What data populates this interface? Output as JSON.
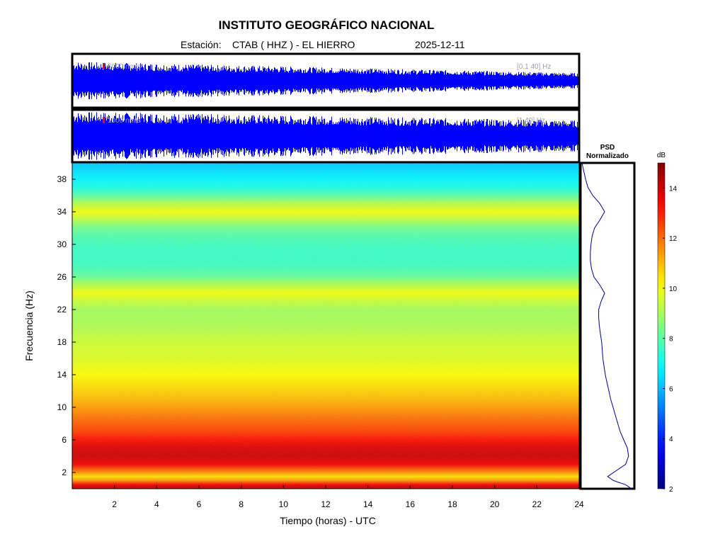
{
  "header": {
    "title": "INSTITUTO GEOGRÁFICO NACIONAL",
    "station_label": "Estación:",
    "station_value": "CTAB ( HHZ ) - EL HIERRO",
    "date": "2025-12-11"
  },
  "traces": [
    {
      "scale_label": "5000 nm/s",
      "filter_label": "[0.1 40] Hz",
      "color": "#0000ff"
    },
    {
      "scale_label": "1000 nm/s",
      "filter_label": "[1 40] Hz",
      "color": "#0000ff"
    }
  ],
  "psd_panel": {
    "title_line1": "PSD",
    "title_line2": "Normalizado",
    "line_color": "#00008b"
  },
  "colorbar": {
    "unit": "dB",
    "range": [
      2,
      15
    ],
    "ticks": [
      2,
      4,
      6,
      8,
      10,
      12,
      14
    ],
    "colormap": "jet"
  },
  "chart_data": {
    "type": "heatmap",
    "title": "INSTITUTO GEOGRÁFICO NACIONAL",
    "xlabel": "Tiempo (horas) - UTC",
    "ylabel": "Frecuencia  (Hz)",
    "xlim": [
      0,
      24
    ],
    "ylim": [
      0,
      40
    ],
    "xticks": [
      2,
      4,
      6,
      8,
      10,
      12,
      14,
      16,
      18,
      20,
      22,
      24
    ],
    "yticks": [
      2,
      6,
      10,
      14,
      18,
      22,
      26,
      30,
      34,
      38
    ],
    "color_unit": "dB",
    "color_range": [
      2,
      15
    ],
    "psd_profile": {
      "frequency": [
        0,
        0.5,
        1,
        1.5,
        2,
        3,
        4,
        5,
        6,
        7,
        8,
        9,
        10,
        11,
        12,
        13,
        14,
        15,
        16,
        17,
        18,
        19,
        20,
        21,
        22,
        23,
        24,
        25,
        26,
        27,
        28,
        29,
        30,
        31,
        32,
        33,
        34,
        35,
        36,
        37,
        38,
        39,
        40
      ],
      "level_db": [
        14.5,
        13.5,
        11.5,
        10.5,
        11.5,
        13.5,
        14.0,
        13.8,
        13.2,
        12.6,
        12.2,
        11.8,
        11.4,
        11.0,
        10.7,
        10.4,
        10.1,
        9.9,
        9.7,
        9.6,
        9.5,
        9.3,
        9.1,
        9.0,
        9.0,
        9.4,
        10.0,
        9.2,
        8.2,
        7.8,
        7.6,
        7.6,
        7.7,
        7.9,
        8.3,
        9.2,
        10.0,
        9.2,
        8.0,
        7.2,
        6.8,
        6.5,
        6.2
      ]
    }
  }
}
